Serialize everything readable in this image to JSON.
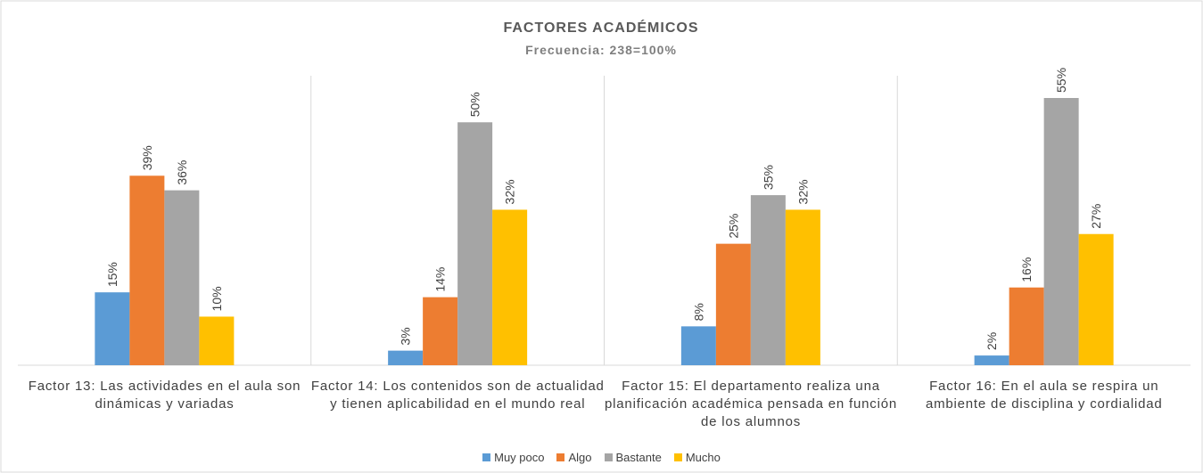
{
  "chart_data": {
    "type": "bar",
    "title": "FACTORES ACADÉMICOS",
    "subtitle": "Frecuencia: 238=100%",
    "categories": [
      "Factor 13: Las actividades en el aula son dinámicas y variadas",
      "Factor 14: Los contenidos son de actualidad y tienen aplicabilidad en el mundo real",
      "Factor 15: El departamento realiza una planificación académica pensada en función de los alumnos",
      "Factor 16: En el aula se respira un ambiente de disciplina y cordialidad"
    ],
    "series": [
      {
        "name": "Muy poco",
        "color": "#5b9bd5",
        "values": [
          15,
          3,
          8,
          2
        ],
        "value_labels": [
          "15%",
          "3%",
          "8%",
          "2%"
        ]
      },
      {
        "name": "Algo",
        "color": "#ed7d31",
        "values": [
          39,
          14,
          25,
          16
        ],
        "value_labels": [
          "39%",
          "14%",
          "25%",
          "16%"
        ]
      },
      {
        "name": "Bastante",
        "color": "#a5a5a5",
        "values": [
          36,
          50,
          35,
          55
        ],
        "value_labels": [
          "36%",
          "50%",
          "35%",
          "55%"
        ]
      },
      {
        "name": "Mucho",
        "color": "#ffc000",
        "values": [
          10,
          32,
          32,
          27
        ],
        "value_labels": [
          "10%",
          "32%",
          "32%",
          "27%"
        ]
      }
    ],
    "legend": "bottom"
  }
}
